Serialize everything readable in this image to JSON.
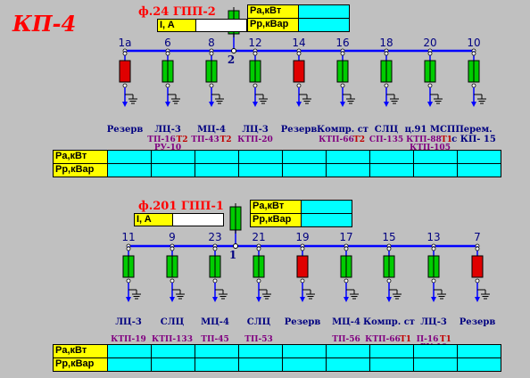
{
  "title": "КП-4",
  "colors": {
    "background": "#c0c0c0",
    "bus": "#0000ff",
    "breaker_closed": "#00cc00",
    "breaker_open": "#e00000",
    "feeder_name": "#000080",
    "subst_name": "#800080",
    "transformer_tag": "#c00000",
    "title": "#ff0000",
    "table_cell": "#00ffff",
    "table_label": "#ffff00"
  },
  "labels": {
    "pa": "Pa,кВт",
    "pp": "Pp,кВар",
    "current": "I, A"
  },
  "section2": {
    "supply_title": "ф.24  ГПП-2",
    "bus_number": "2",
    "current_value": "",
    "pa_value": "",
    "pp_value": "",
    "feeders": [
      {
        "num": "1а",
        "state": "open",
        "name": "Резерв",
        "sub1": "",
        "tr1": "",
        "sub2": ""
      },
      {
        "num": "6",
        "state": "closed",
        "name": "ЛЦ-3",
        "sub1": "ТП-16",
        "tr1": "Т2",
        "sub2": "РУ-10"
      },
      {
        "num": "8",
        "state": "closed",
        "name": "МЦ-4",
        "sub1": "ТП-43",
        "tr1": "Т2",
        "sub2": ""
      },
      {
        "num": "12",
        "state": "closed",
        "name": "ЛЦ-3",
        "sub1": "КТП-20",
        "tr1": "",
        "sub2": ""
      },
      {
        "num": "14",
        "state": "open",
        "name": "Резерв",
        "sub1": "",
        "tr1": "",
        "sub2": ""
      },
      {
        "num": "16",
        "state": "closed",
        "name": "Компр. ст",
        "sub1": "КТП-66",
        "tr1": "Т2",
        "sub2": ""
      },
      {
        "num": "18",
        "state": "closed",
        "name": "СЛЦ",
        "sub1": "СП-135",
        "tr1": "",
        "sub2": ""
      },
      {
        "num": "20",
        "state": "closed",
        "name": "ц.91 МСП",
        "sub1": "КТП-88",
        "tr1": "Т1",
        "sub2": "КТП-105"
      },
      {
        "num": "10",
        "state": "closed",
        "name": "Перем.",
        "name2": "с КП- 15",
        "sub1": "",
        "tr1": "",
        "sub2": ""
      }
    ],
    "table": {
      "pa": [
        "",
        "",
        "",
        "",
        "",
        "",
        "",
        "",
        ""
      ],
      "pp": [
        "",
        "",
        "",
        "",
        "",
        "",
        "",
        "",
        ""
      ]
    }
  },
  "section1": {
    "supply_title": "ф.201  ГПП-1",
    "bus_number": "1",
    "current_value": "",
    "pa_value": "",
    "pp_value": "",
    "feeders": [
      {
        "num": "11",
        "state": "closed",
        "name": "ЛЦ-3",
        "sub1": "КТП-19",
        "tr1": "",
        "sub2": ""
      },
      {
        "num": "9",
        "state": "closed",
        "name": "СЛЦ",
        "sub1": "КТП-133",
        "tr1": "",
        "sub2": ""
      },
      {
        "num": "23",
        "state": "closed",
        "name": "МЦ-4",
        "sub1": "ТП-45",
        "tr1": "",
        "sub2": ""
      },
      {
        "num": "21",
        "state": "closed",
        "name": "СЛЦ",
        "sub1": "ТП-53",
        "tr1": "",
        "sub2": ""
      },
      {
        "num": "19",
        "state": "open",
        "name": "Резерв",
        "sub1": "",
        "tr1": "",
        "sub2": ""
      },
      {
        "num": "17",
        "state": "closed",
        "name": "МЦ-4",
        "sub1": "ТП-56",
        "tr1": "",
        "sub2": ""
      },
      {
        "num": "15",
        "state": "closed",
        "name": "Компр. ст",
        "sub1": "КТП-66",
        "tr1": "Т1",
        "sub2": ""
      },
      {
        "num": "13",
        "state": "closed",
        "name": "ЛЦ-3",
        "sub1": "П-16",
        "tr1": "Т1",
        "sub2": "РУ-10"
      },
      {
        "num": "7",
        "state": "open",
        "name": "Резерв",
        "sub1": "",
        "tr1": "",
        "sub2": ""
      }
    ],
    "table": {
      "pa": [
        "",
        "",
        "",
        "",
        "",
        "",
        "",
        "",
        ""
      ],
      "pp": [
        "",
        "",
        "",
        "",
        "",
        "",
        "",
        "",
        ""
      ]
    }
  }
}
